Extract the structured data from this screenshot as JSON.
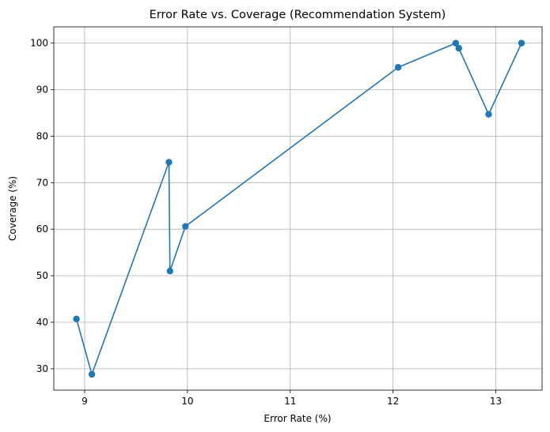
{
  "chart_data": {
    "type": "line",
    "title": "Error Rate vs. Coverage (Recommendation System)",
    "xlabel": "Error Rate (%)",
    "ylabel": "Coverage (%)",
    "xlim": [
      8.7,
      13.45
    ],
    "ylim": [
      25.4,
      103.5
    ],
    "xticks": [
      9,
      10,
      11,
      12,
      13
    ],
    "yticks": [
      30,
      40,
      50,
      60,
      70,
      80,
      90,
      100
    ],
    "grid": true,
    "marker": "circle",
    "series": [
      {
        "color": "#1f77b4",
        "points": [
          {
            "x": 8.92,
            "y": 40.7
          },
          {
            "x": 9.07,
            "y": 28.8
          },
          {
            "x": 9.82,
            "y": 74.4
          },
          {
            "x": 9.83,
            "y": 51.0
          },
          {
            "x": 9.98,
            "y": 60.6
          },
          {
            "x": 12.05,
            "y": 94.8
          },
          {
            "x": 12.61,
            "y": 100.0
          },
          {
            "x": 12.64,
            "y": 98.9
          },
          {
            "x": 12.93,
            "y": 84.7
          },
          {
            "x": 13.25,
            "y": 100.0
          }
        ]
      }
    ]
  }
}
